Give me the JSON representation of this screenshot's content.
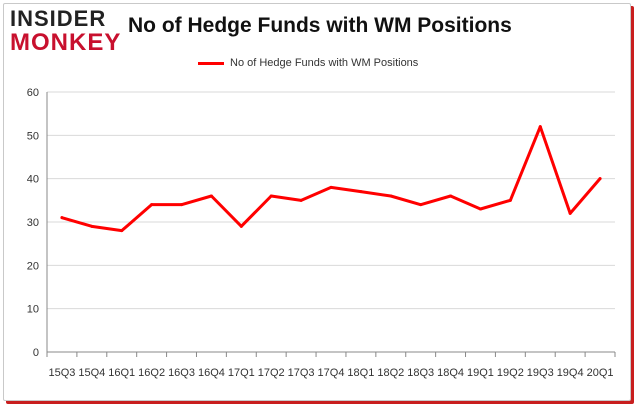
{
  "logo": {
    "line1": "INSIDER",
    "line2": "MONKEY"
  },
  "chart_data": {
    "type": "line",
    "title": "No of Hedge Funds with WM Positions",
    "xlabel": "",
    "ylabel": "",
    "categories": [
      "15Q3",
      "15Q4",
      "16Q1",
      "16Q2",
      "16Q3",
      "16Q4",
      "17Q1",
      "17Q2",
      "17Q3",
      "17Q4",
      "18Q1",
      "18Q2",
      "18Q3",
      "18Q4",
      "19Q1",
      "19Q2",
      "19Q3",
      "19Q4",
      "20Q1"
    ],
    "series": [
      {
        "name": "No of Hedge Funds with WM Positions",
        "values": [
          31,
          29,
          28,
          34,
          34,
          36,
          29,
          36,
          35,
          38,
          37,
          36,
          34,
          36,
          33,
          35,
          52,
          32,
          40
        ],
        "color": "#ff0000"
      }
    ],
    "ylim": [
      0,
      60
    ],
    "yticks": [
      "0",
      "10",
      "20",
      "30",
      "40",
      "50",
      "60"
    ],
    "grid": true,
    "legend": "top-center"
  }
}
